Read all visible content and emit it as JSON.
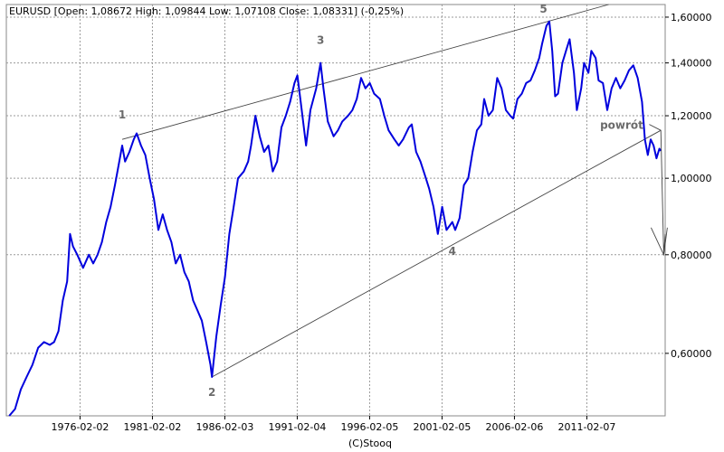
{
  "chart_data": {
    "type": "line",
    "instrument": "EURUSD",
    "header": "EURUSD [Open: 1,08672  High: 1,09844  Low: 1,07108  Close: 1,08331]  (-0,25%)",
    "footer": "(C)Stooq",
    "y_scale": "log",
    "ylim": [
      0.5,
      1.66
    ],
    "xlim": [
      1971.0,
      2016.5
    ],
    "grid": true,
    "colors": {
      "series": "#0000dd",
      "trend": "#444444",
      "grid": "#9a9a9a",
      "annotation": "#6b6b6b"
    },
    "x_ticks": [
      {
        "x": 1976.09,
        "label": "1976-02-02"
      },
      {
        "x": 1981.09,
        "label": "1981-02-02"
      },
      {
        "x": 1986.09,
        "label": "1986-02-03"
      },
      {
        "x": 1991.09,
        "label": "1991-02-04"
      },
      {
        "x": 1996.09,
        "label": "1996-02-05"
      },
      {
        "x": 2001.09,
        "label": "2001-02-05"
      },
      {
        "x": 2006.09,
        "label": "2006-02-06"
      },
      {
        "x": 2011.09,
        "label": "2011-02-07"
      }
    ],
    "y_ticks": [
      {
        "y": 0.6,
        "label": "0,60000"
      },
      {
        "y": 0.8,
        "label": "0,80000"
      },
      {
        "y": 1.0,
        "label": "1,00000"
      },
      {
        "y": 1.2,
        "label": "1,20000"
      },
      {
        "y": 1.4,
        "label": "1,40000"
      },
      {
        "y": 1.6,
        "label": "1,60000"
      }
    ],
    "series": [
      {
        "values": [
          [
            1971.2,
            0.5
          ],
          [
            1971.6,
            0.51
          ],
          [
            1972.0,
            0.54
          ],
          [
            1972.4,
            0.56
          ],
          [
            1972.8,
            0.58
          ],
          [
            1973.2,
            0.61
          ],
          [
            1973.6,
            0.62
          ],
          [
            1974.0,
            0.615
          ],
          [
            1974.3,
            0.62
          ],
          [
            1974.6,
            0.64
          ],
          [
            1974.9,
            0.7
          ],
          [
            1975.2,
            0.74
          ],
          [
            1975.4,
            0.85
          ],
          [
            1975.6,
            0.82
          ],
          [
            1975.9,
            0.8
          ],
          [
            1976.3,
            0.77
          ],
          [
            1976.7,
            0.8
          ],
          [
            1977.0,
            0.78
          ],
          [
            1977.3,
            0.8
          ],
          [
            1977.6,
            0.83
          ],
          [
            1977.9,
            0.88
          ],
          [
            1978.2,
            0.92
          ],
          [
            1978.5,
            0.98
          ],
          [
            1978.8,
            1.05
          ],
          [
            1979.0,
            1.1
          ],
          [
            1979.2,
            1.05
          ],
          [
            1979.5,
            1.08
          ],
          [
            1979.8,
            1.12
          ],
          [
            1980.0,
            1.14
          ],
          [
            1980.3,
            1.1
          ],
          [
            1980.6,
            1.07
          ],
          [
            1980.9,
            1.0
          ],
          [
            1981.2,
            0.94
          ],
          [
            1981.5,
            0.86
          ],
          [
            1981.8,
            0.9
          ],
          [
            1982.1,
            0.86
          ],
          [
            1982.4,
            0.83
          ],
          [
            1982.7,
            0.78
          ],
          [
            1983.0,
            0.8
          ],
          [
            1983.3,
            0.76
          ],
          [
            1983.6,
            0.74
          ],
          [
            1983.9,
            0.7
          ],
          [
            1984.2,
            0.68
          ],
          [
            1984.5,
            0.66
          ],
          [
            1984.8,
            0.62
          ],
          [
            1985.1,
            0.58
          ],
          [
            1985.2,
            0.56
          ],
          [
            1985.5,
            0.63
          ],
          [
            1985.8,
            0.69
          ],
          [
            1986.1,
            0.75
          ],
          [
            1986.4,
            0.85
          ],
          [
            1986.7,
            0.92
          ],
          [
            1987.0,
            1.0
          ],
          [
            1987.4,
            1.02
          ],
          [
            1987.7,
            1.05
          ],
          [
            1987.9,
            1.1
          ],
          [
            1988.2,
            1.2
          ],
          [
            1988.5,
            1.13
          ],
          [
            1988.8,
            1.08
          ],
          [
            1989.1,
            1.1
          ],
          [
            1989.4,
            1.02
          ],
          [
            1989.7,
            1.05
          ],
          [
            1990.0,
            1.16
          ],
          [
            1990.3,
            1.2
          ],
          [
            1990.6,
            1.25
          ],
          [
            1990.9,
            1.32
          ],
          [
            1991.1,
            1.35
          ],
          [
            1991.4,
            1.22
          ],
          [
            1991.7,
            1.1
          ],
          [
            1992.0,
            1.22
          ],
          [
            1992.4,
            1.3
          ],
          [
            1992.7,
            1.4
          ],
          [
            1992.9,
            1.3
          ],
          [
            1993.2,
            1.18
          ],
          [
            1993.6,
            1.13
          ],
          [
            1993.9,
            1.15
          ],
          [
            1994.2,
            1.18
          ],
          [
            1994.6,
            1.2
          ],
          [
            1994.9,
            1.22
          ],
          [
            1995.2,
            1.26
          ],
          [
            1995.5,
            1.34
          ],
          [
            1995.8,
            1.3
          ],
          [
            1996.1,
            1.32
          ],
          [
            1996.4,
            1.28
          ],
          [
            1996.8,
            1.26
          ],
          [
            1997.1,
            1.2
          ],
          [
            1997.4,
            1.15
          ],
          [
            1997.8,
            1.12
          ],
          [
            1998.1,
            1.1
          ],
          [
            1998.4,
            1.12
          ],
          [
            1998.8,
            1.16
          ],
          [
            1999.0,
            1.17
          ],
          [
            1999.3,
            1.08
          ],
          [
            1999.6,
            1.05
          ],
          [
            1999.9,
            1.01
          ],
          [
            2000.2,
            0.97
          ],
          [
            2000.5,
            0.92
          ],
          [
            2000.8,
            0.85
          ],
          [
            2001.1,
            0.92
          ],
          [
            2001.4,
            0.86
          ],
          [
            2001.8,
            0.88
          ],
          [
            2002.0,
            0.86
          ],
          [
            2002.3,
            0.89
          ],
          [
            2002.6,
            0.98
          ],
          [
            2002.9,
            1.0
          ],
          [
            2003.2,
            1.08
          ],
          [
            2003.5,
            1.15
          ],
          [
            2003.8,
            1.17
          ],
          [
            2004.0,
            1.26
          ],
          [
            2004.3,
            1.2
          ],
          [
            2004.6,
            1.22
          ],
          [
            2004.9,
            1.34
          ],
          [
            2005.2,
            1.3
          ],
          [
            2005.5,
            1.22
          ],
          [
            2005.8,
            1.2
          ],
          [
            2006.0,
            1.19
          ],
          [
            2006.3,
            1.26
          ],
          [
            2006.6,
            1.28
          ],
          [
            2006.9,
            1.32
          ],
          [
            2007.2,
            1.33
          ],
          [
            2007.5,
            1.37
          ],
          [
            2007.8,
            1.42
          ],
          [
            2008.0,
            1.48
          ],
          [
            2008.3,
            1.56
          ],
          [
            2008.5,
            1.58
          ],
          [
            2008.7,
            1.45
          ],
          [
            2008.9,
            1.27
          ],
          [
            2009.1,
            1.28
          ],
          [
            2009.4,
            1.4
          ],
          [
            2009.7,
            1.46
          ],
          [
            2009.9,
            1.5
          ],
          [
            2010.2,
            1.36
          ],
          [
            2010.4,
            1.22
          ],
          [
            2010.7,
            1.3
          ],
          [
            2010.9,
            1.4
          ],
          [
            2011.2,
            1.36
          ],
          [
            2011.4,
            1.45
          ],
          [
            2011.7,
            1.42
          ],
          [
            2011.9,
            1.33
          ],
          [
            2012.2,
            1.32
          ],
          [
            2012.5,
            1.22
          ],
          [
            2012.8,
            1.3
          ],
          [
            2013.1,
            1.34
          ],
          [
            2013.4,
            1.3
          ],
          [
            2013.7,
            1.33
          ],
          [
            2014.0,
            1.37
          ],
          [
            2014.3,
            1.39
          ],
          [
            2014.6,
            1.34
          ],
          [
            2014.9,
            1.25
          ],
          [
            2015.1,
            1.12
          ],
          [
            2015.3,
            1.07
          ],
          [
            2015.5,
            1.12
          ],
          [
            2015.7,
            1.1
          ],
          [
            2015.9,
            1.06
          ],
          [
            2016.1,
            1.09
          ],
          [
            2016.2,
            1.083
          ]
        ]
      }
    ],
    "trendlines": [
      {
        "from": [
          1979.0,
          1.12
        ],
        "to": [
          2012.6,
          1.66
        ]
      },
      {
        "from": [
          1985.2,
          0.56
        ],
        "to": [
          2016.2,
          1.15
        ]
      }
    ],
    "projection": [
      [
        2015.4,
        1.17
      ],
      [
        2016.2,
        1.15
      ],
      [
        2016.4,
        0.8
      ],
      [
        2016.5,
        0.85
      ]
    ],
    "annotations": [
      {
        "text": "1",
        "x": 1979.0,
        "y": 1.19
      },
      {
        "text": "2",
        "x": 1985.2,
        "y": 0.53
      },
      {
        "text": "3",
        "x": 1992.7,
        "y": 1.48
      },
      {
        "text": "4",
        "x": 2001.8,
        "y": 0.8
      },
      {
        "text": "5",
        "x": 2008.1,
        "y": 1.62
      },
      {
        "text": "powrót",
        "x": 2013.5,
        "y": 1.155
      }
    ]
  }
}
